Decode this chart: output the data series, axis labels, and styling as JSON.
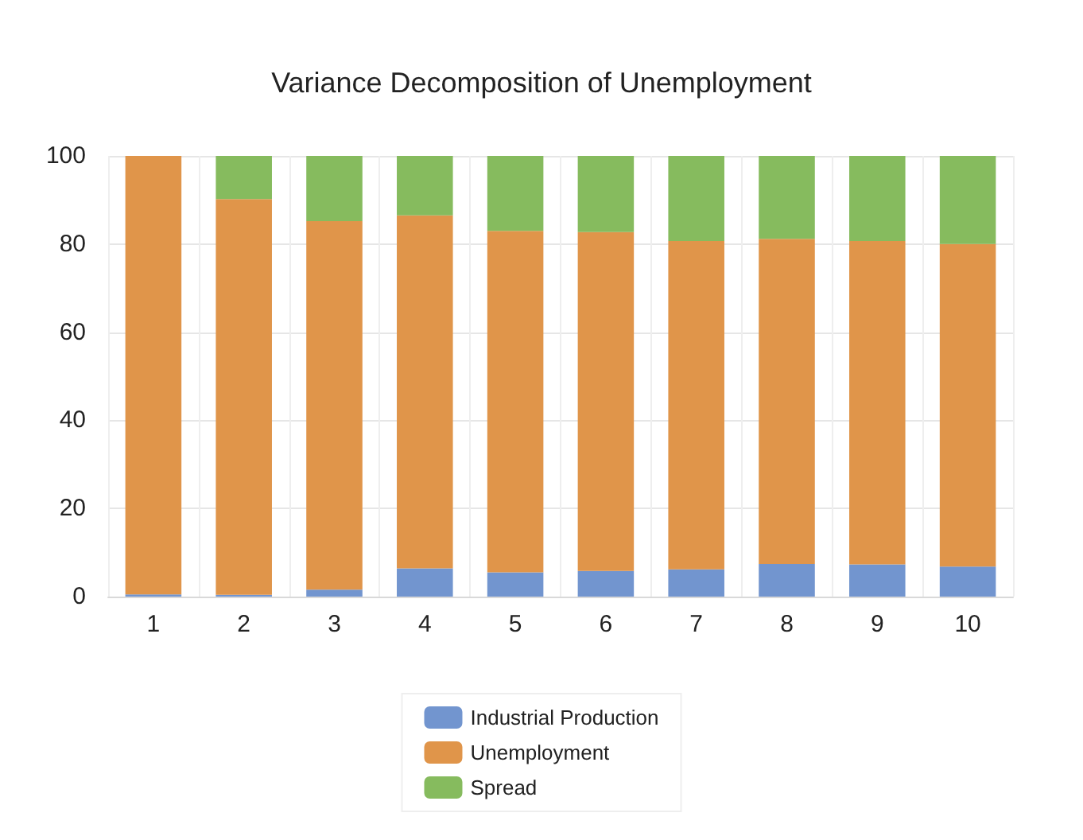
{
  "chart_data": {
    "type": "bar",
    "title": "Variance Decomposition of Unemployment",
    "categories": [
      "1",
      "2",
      "3",
      "4",
      "5",
      "6",
      "7",
      "8",
      "9",
      "10"
    ],
    "stacked": true,
    "ylim": [
      0,
      100
    ],
    "yticks": [
      0,
      20,
      40,
      60,
      80,
      100
    ],
    "grid": true,
    "legend": "bottom",
    "series": [
      {
        "name": "Industrial Production",
        "color": "#7295cf",
        "values": [
          0.5,
          0.4,
          1.6,
          6.4,
          5.5,
          5.8,
          6.2,
          7.4,
          7.3,
          6.8
        ]
      },
      {
        "name": "Unemployment",
        "color": "#e0954a",
        "values": [
          99.5,
          89.8,
          83.6,
          80.1,
          77.5,
          76.9,
          74.5,
          73.8,
          73.4,
          73.2
        ]
      },
      {
        "name": "Spread",
        "color": "#86bb5e",
        "values": [
          0,
          9.8,
          14.8,
          13.5,
          17.0,
          17.3,
          19.3,
          18.8,
          19.3,
          20.0
        ]
      }
    ]
  }
}
